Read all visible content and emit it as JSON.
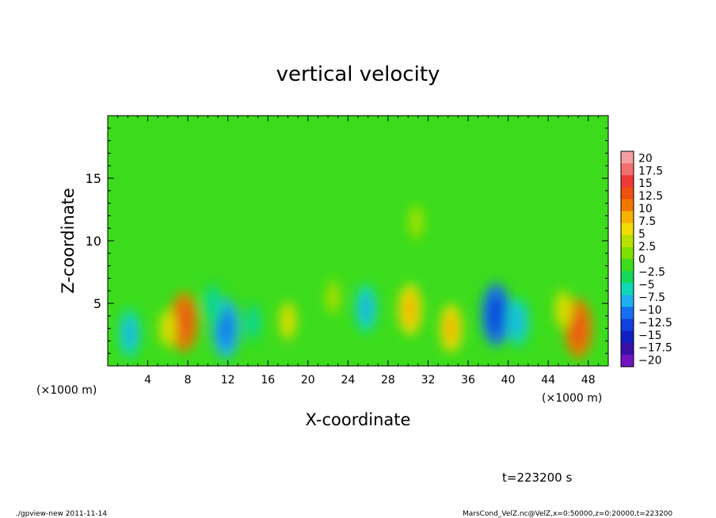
{
  "chart_data": {
    "type": "heatmap",
    "title": "vertical velocity",
    "xlabel": "X-coordinate",
    "ylabel": "Z-coordinate",
    "x_unit": "(×1000 m)",
    "y_unit": "(×1000 m)",
    "xlim": [
      0,
      50
    ],
    "ylim": [
      0,
      20
    ],
    "x_ticks": [
      4,
      8,
      12,
      16,
      20,
      24,
      28,
      32,
      36,
      40,
      44,
      48
    ],
    "y_ticks": [
      5,
      10,
      15
    ],
    "colorbar": {
      "levels": [
        20,
        17.5,
        15,
        12.5,
        10,
        7.5,
        5,
        2.5,
        0,
        -2.5,
        -5,
        -7.5,
        -10,
        -12.5,
        -15,
        -17.5,
        -20
      ],
      "colors": [
        "#f5a0a0",
        "#f07070",
        "#f03838",
        "#f05010",
        "#f07800",
        "#f8b000",
        "#f0dc00",
        "#b8e000",
        "#7ee000",
        "#3cdc1c",
        "#14d85c",
        "#10d8b4",
        "#1cb0f0",
        "#1470f0",
        "#1040e0",
        "#1020c0",
        "#3a10a8",
        "#7014c0"
      ]
    },
    "background_color": "#3cdc1c",
    "features": [
      {
        "x": 2.2,
        "z": 2.6,
        "value": -6
      },
      {
        "x": 7.6,
        "z": 3.5,
        "value": 10
      },
      {
        "x": 6.0,
        "z": 3.0,
        "value": 3
      },
      {
        "x": 11.8,
        "z": 3.0,
        "value": -10
      },
      {
        "x": 10.5,
        "z": 5.0,
        "value": -4
      },
      {
        "x": 18.0,
        "z": 3.6,
        "value": 3
      },
      {
        "x": 14.5,
        "z": 3.5,
        "value": -3
      },
      {
        "x": 25.8,
        "z": 4.6,
        "value": -6
      },
      {
        "x": 22.5,
        "z": 5.5,
        "value": 2
      },
      {
        "x": 30.2,
        "z": 4.5,
        "value": 7
      },
      {
        "x": 30.8,
        "z": 11.5,
        "value": 2
      },
      {
        "x": 34.3,
        "z": 3.0,
        "value": 6
      },
      {
        "x": 38.8,
        "z": 4.1,
        "value": -11
      },
      {
        "x": 41.0,
        "z": 3.5,
        "value": -6
      },
      {
        "x": 47.0,
        "z": 3.0,
        "value": 10
      },
      {
        "x": 45.5,
        "z": 4.5,
        "value": 3
      }
    ]
  },
  "time_label": "t=223200 s",
  "footer": {
    "left": "./gpview-new  2011-11-14",
    "right": "MarsCond_VelZ.nc@VelZ,x=0:50000,z=0:20000,t=223200"
  }
}
